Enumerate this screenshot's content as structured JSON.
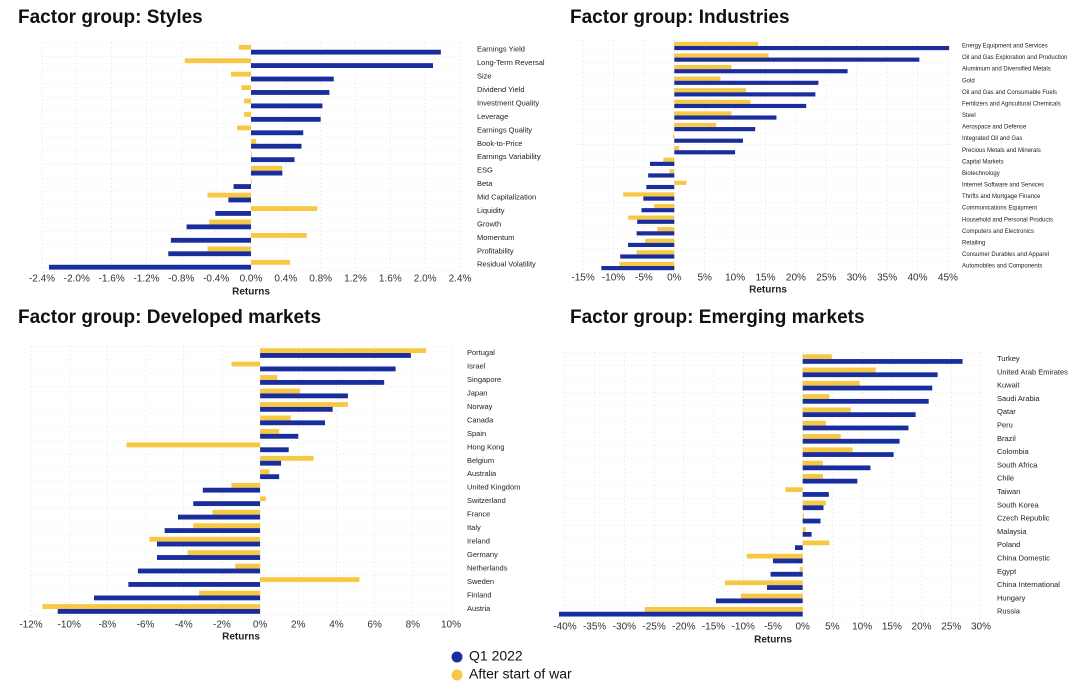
{
  "legend": [
    {
      "name": "Q1 2022",
      "color": "#1a2d9c"
    },
    {
      "name": "After start of war",
      "color": "#f7c843"
    }
  ],
  "chart_data": [
    {
      "type": "bar",
      "orientation": "horizontal",
      "title": "Factor group: Styles",
      "xlabel": "Returns",
      "categories": [
        "Earnings Yield",
        "Long-Term Reversal",
        "Size",
        "Dividend Yield",
        "Investment Quality",
        "Leverage",
        "Earnings Quality",
        "Book-to-Price",
        "Earnings Variability",
        "ESG",
        "Beta",
        "Mid Capitalization",
        "Liquidity",
        "Growth",
        "Momentum",
        "Profitability",
        "Residual Volatility"
      ],
      "series": [
        {
          "values": [
            2.18,
            2.09,
            0.95,
            0.9,
            0.82,
            0.8,
            0.6,
            0.58,
            0.5,
            0.36,
            -0.2,
            -0.26,
            -0.41,
            -0.74,
            -0.92,
            -0.95,
            -2.32
          ]
        },
        {
          "values": [
            -0.14,
            -0.76,
            -0.23,
            -0.11,
            -0.08,
            -0.08,
            -0.16,
            0.06,
            0.01,
            0.36,
            0.01,
            -0.5,
            0.76,
            -0.48,
            0.64,
            -0.5,
            0.45
          ]
        }
      ],
      "xlim": [
        -2.4,
        2.4
      ],
      "xticks": [
        {
          "value": -2.4,
          "label": "-2.4%"
        },
        {
          "value": -2.0,
          "label": "-2.0%"
        },
        {
          "value": -1.6,
          "label": "-1.6%"
        },
        {
          "value": -1.2,
          "label": "-1.2%"
        },
        {
          "value": -0.8,
          "label": "-0.8%"
        },
        {
          "value": -0.4,
          "label": "-0.4%"
        },
        {
          "value": 0,
          "label": "0.0%"
        },
        {
          "value": 0.4,
          "label": "0.4%"
        },
        {
          "value": 0.8,
          "label": "0.8%"
        },
        {
          "value": 1.2,
          "label": "1.2%"
        },
        {
          "value": 1.6,
          "label": "1.6%"
        },
        {
          "value": 2.0,
          "label": "2.0%"
        },
        {
          "value": 2.4,
          "label": "2.4%"
        }
      ],
      "grid": true
    },
    {
      "type": "bar",
      "orientation": "horizontal",
      "title": "Factor group: Industries",
      "xlabel": "Returns",
      "categories": [
        "Energy Equipment and Services",
        "Oil and Gas Exploration and Production",
        "Aluminium and Diversified Metals",
        "Gold",
        "Oil and Gas and Consumable Fuels",
        "Fertilizers and Agricultural Chemicals",
        "Steel",
        "Aerospace and Defense",
        "Integrated Oil and Gas",
        "Precious Metals and Minerals",
        "Capital Markets",
        "Biotechnology",
        "Internet Software and Services",
        "Thrifts and Mortgage Finance",
        "Communications Equipment",
        "Household and Personal Products",
        "Computers and Electronics",
        "Retailing",
        "Consumer Durables and Apparel",
        "Automobiles and Components"
      ],
      "series": [
        {
          "values": [
            45.2,
            40.3,
            28.5,
            23.7,
            23.2,
            21.7,
            16.8,
            13.3,
            11.3,
            10,
            -4,
            -4.3,
            -4.6,
            -5.1,
            -5.4,
            -6.1,
            -6.2,
            -7.6,
            -8.9,
            -12
          ]
        },
        {
          "values": [
            13.8,
            15.5,
            9.4,
            7.6,
            11.8,
            12.5,
            9.4,
            6.9,
            -0.2,
            0.8,
            -1.8,
            -0.8,
            2,
            -8.4,
            -3.3,
            -7.6,
            -2.8,
            -4.8,
            -6.2,
            -9
          ]
        }
      ],
      "xlim": [
        -16,
        46
      ],
      "xticks": [
        {
          "value": -15,
          "label": "-15%"
        },
        {
          "value": -10,
          "label": "-10%"
        },
        {
          "value": -5,
          "label": "-5%"
        },
        {
          "value": 0,
          "label": "0%"
        },
        {
          "value": 5,
          "label": "5%"
        },
        {
          "value": 10,
          "label": "10%"
        },
        {
          "value": 15,
          "label": "15%"
        },
        {
          "value": 20,
          "label": "20%"
        },
        {
          "value": 25,
          "label": "25%"
        },
        {
          "value": 30,
          "label": "30%"
        },
        {
          "value": 35,
          "label": "35%"
        },
        {
          "value": 40,
          "label": "40%"
        },
        {
          "value": 45,
          "label": "45%"
        }
      ],
      "grid": true
    },
    {
      "type": "bar",
      "orientation": "horizontal",
      "title": "Factor group: Developed markets",
      "xlabel": "Returns",
      "categories": [
        "Portugal",
        "Israel",
        "Singapore",
        "Japan",
        "Norway",
        "Canada",
        "Spain",
        "Hong Kong",
        "Belgium",
        "Australia",
        "United Kingdom",
        "Switzerland",
        "France",
        "Italy",
        "Ireland",
        "Germany",
        "Netherlands",
        "Sweden",
        "Finland",
        "Austria"
      ],
      "series": [
        {
          "values": [
            7.9,
            7.1,
            6.5,
            4.6,
            3.8,
            3.4,
            2.0,
            1.5,
            1.1,
            1.0,
            -3.0,
            -3.5,
            -4.3,
            -5.0,
            -5.4,
            -5.4,
            -6.4,
            -6.9,
            -8.7,
            -10.6
          ]
        },
        {
          "values": [
            8.7,
            -1.5,
            0.9,
            2.1,
            4.6,
            1.6,
            1.0,
            -7.0,
            2.8,
            0.5,
            -1.5,
            0.3,
            -2.5,
            -3.5,
            -5.8,
            -3.8,
            -1.3,
            5.2,
            -3.2,
            -11.4
          ]
        }
      ],
      "xlim": [
        -12,
        10
      ],
      "xticks": [
        {
          "value": -12,
          "label": "-12%"
        },
        {
          "value": -10,
          "label": "-10%"
        },
        {
          "value": -8,
          "label": "-8%"
        },
        {
          "value": -6,
          "label": "-6%"
        },
        {
          "value": -4,
          "label": "-4%"
        },
        {
          "value": -2,
          "label": "-2%"
        },
        {
          "value": 0,
          "label": "0%"
        },
        {
          "value": 2,
          "label": "2%"
        },
        {
          "value": 4,
          "label": "4%"
        },
        {
          "value": 6,
          "label": "6%"
        },
        {
          "value": 8,
          "label": "8%"
        },
        {
          "value": 10,
          "label": "10%"
        }
      ],
      "grid": true
    },
    {
      "type": "bar",
      "orientation": "horizontal",
      "title": "Factor group: Emerging markets",
      "xlabel": "Returns",
      "categories": [
        "Turkey",
        "United Arab Emirates",
        "Kuwait",
        "Saudi Arabia",
        "Qatar",
        "Peru",
        "Brazil",
        "Colombia",
        "South Africa",
        "Chile",
        "Taiwan",
        "South Korea",
        "Czech Republic",
        "Malaysia",
        "Poland",
        "China Domestic",
        "Egypt",
        "China International",
        "Hungary",
        "Russia"
      ],
      "series": [
        {
          "values": [
            26.9,
            22.7,
            21.8,
            21.2,
            19.0,
            17.8,
            16.3,
            15.3,
            11.4,
            9.2,
            4.4,
            3.5,
            3.0,
            1.5,
            -1.3,
            -5.0,
            -5.4,
            -6.0,
            -14.6,
            -41
          ]
        },
        {
          "values": [
            4.9,
            12.3,
            9.6,
            4.5,
            8.1,
            3.9,
            6.4,
            8.4,
            3.4,
            3.4,
            -2.9,
            3.9,
            0.2,
            0.5,
            4.5,
            -9.4,
            -0.5,
            -13.1,
            -10.4,
            -26.6
          ]
        }
      ],
      "xlim": [
        -41,
        30
      ],
      "xticks": [
        {
          "value": -40,
          "label": "-40%"
        },
        {
          "value": -35,
          "label": "-35%"
        },
        {
          "value": -30,
          "label": "-30%"
        },
        {
          "value": -25,
          "label": "-25%"
        },
        {
          "value": -20,
          "label": "-20%"
        },
        {
          "value": -15,
          "label": "-15%"
        },
        {
          "value": -10,
          "label": "-10%"
        },
        {
          "value": -5,
          "label": "-5%"
        },
        {
          "value": 0,
          "label": "0%"
        },
        {
          "value": 5,
          "label": "5%"
        },
        {
          "value": 10,
          "label": "10%"
        },
        {
          "value": 15,
          "label": "15%"
        },
        {
          "value": 20,
          "label": "20%"
        },
        {
          "value": 25,
          "label": "25%"
        },
        {
          "value": 30,
          "label": "30%"
        }
      ],
      "grid": true
    }
  ]
}
